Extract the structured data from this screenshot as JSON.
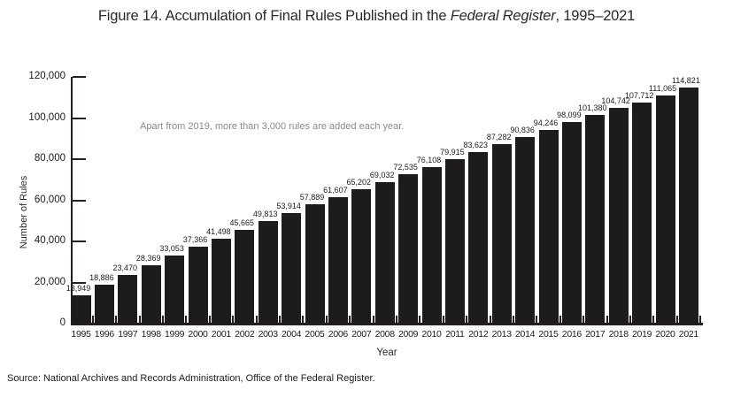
{
  "figure": {
    "title_prefix": "Figure 14. Accumulation of Final Rules Published in the ",
    "title_italic": "Federal Register",
    "title_suffix": ", 1995–2021",
    "source": "Source: National Archives and Records Administration, Office of the Federal Register."
  },
  "chart_data": {
    "type": "bar",
    "title": "Figure 14. Accumulation of Final Rules Published in the Federal Register, 1995–2021",
    "xlabel": "Year",
    "ylabel": "Number of Rules",
    "annotation": "Apart from 2019, more than 3,000 rules are added each year.",
    "categories": [
      "1995",
      "1996",
      "1997",
      "1998",
      "1999",
      "2000",
      "2001",
      "2002",
      "2003",
      "2004",
      "2005",
      "2006",
      "2007",
      "2008",
      "2009",
      "2010",
      "2011",
      "2012",
      "2013",
      "2014",
      "2015",
      "2016",
      "2017",
      "2018",
      "2019",
      "2020",
      "2021"
    ],
    "values": [
      13949,
      18886,
      23470,
      28369,
      33053,
      37366,
      41498,
      45665,
      49813,
      53914,
      57889,
      61607,
      65202,
      69032,
      72535,
      76108,
      79915,
      83623,
      87282,
      90836,
      94246,
      98099,
      101380,
      104742,
      107712,
      111065,
      114821
    ],
    "value_labels": [
      "13,949",
      "18,886",
      "23,470",
      "28,369",
      "33,053",
      "37,366",
      "41,498",
      "45,665",
      "49,813",
      "53,914",
      "57,889",
      "61,607",
      "65,202",
      "69,032",
      "72,535",
      "76,108",
      "79,915",
      "83,623",
      "87,282",
      "90,836",
      "94,246",
      "98,099",
      "101,380",
      "104,742",
      "107,712",
      "111,065",
      "114,821"
    ],
    "ylim": [
      0,
      120000
    ],
    "ytick_interval": 20000,
    "ytick_labels": [
      "0",
      "20,000",
      "40,000",
      "60,000",
      "80,000",
      "100,000",
      "120,000"
    ],
    "grid": false,
    "legend": false,
    "bar_color": "#1d1b1b",
    "axis_color": "#231f20",
    "annotation_color": "#8a8a8a"
  }
}
